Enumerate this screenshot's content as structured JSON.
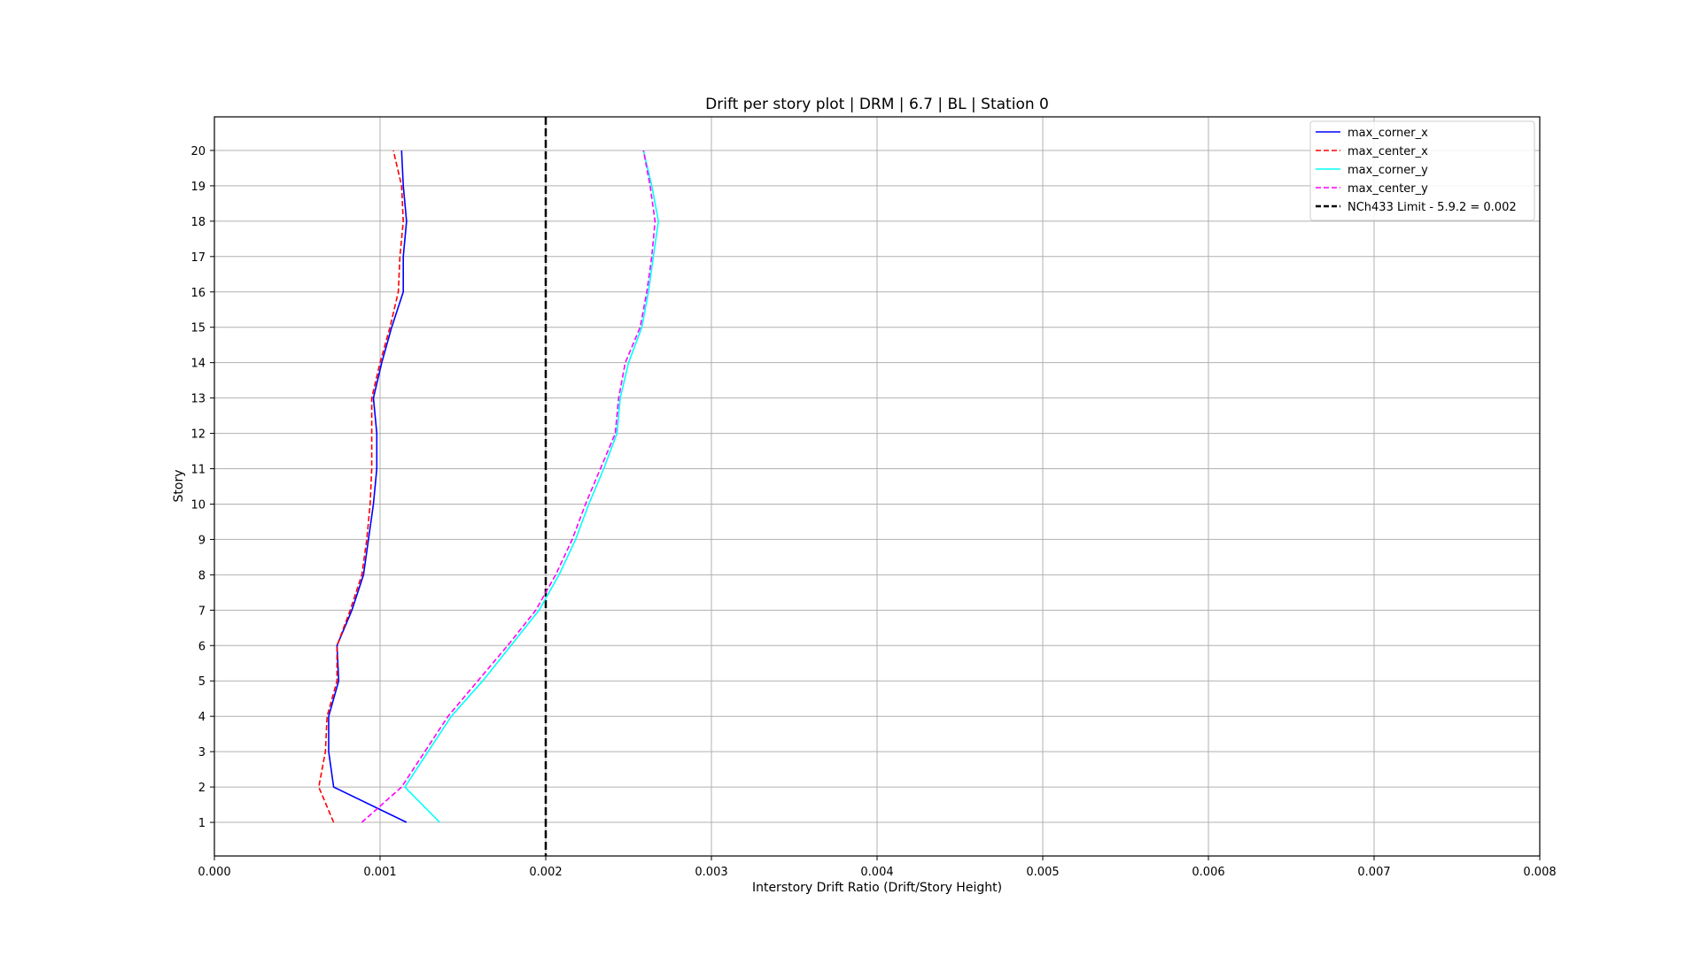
{
  "chart_data": {
    "type": "line",
    "title": "Drift per story plot | DRM |  6.7 | BL | Station 0",
    "xlabel": "Interstory Drift Ratio (Drift/Story Height)",
    "ylabel": "Story",
    "xlim": [
      0,
      0.008
    ],
    "ylim": [
      0.05,
      20.95
    ],
    "xticks": [
      "0.000",
      "0.001",
      "0.002",
      "0.003",
      "0.004",
      "0.005",
      "0.006",
      "0.007",
      "0.008"
    ],
    "yticks": [
      "1",
      "2",
      "3",
      "4",
      "5",
      "6",
      "7",
      "8",
      "9",
      "10",
      "11",
      "12",
      "13",
      "14",
      "15",
      "16",
      "17",
      "18",
      "19",
      "20"
    ],
    "grid": true,
    "legend_position": "top-right",
    "series": [
      {
        "name": "max_corner_x",
        "color": "#0000ff",
        "dash": "solid",
        "y": [
          1,
          2,
          3,
          4,
          5,
          6,
          7,
          8,
          9,
          10,
          11,
          12,
          13,
          14,
          15,
          16,
          17,
          18,
          19,
          20
        ],
        "x": [
          0.00116,
          0.00072,
          0.00069,
          0.00069,
          0.00075,
          0.00074,
          0.00083,
          0.0009,
          0.00093,
          0.00096,
          0.00098,
          0.00098,
          0.00096,
          0.00101,
          0.00107,
          0.00114,
          0.00114,
          0.00116,
          0.00114,
          0.00113
        ]
      },
      {
        "name": "max_center_x",
        "color": "#ff0000",
        "dash": "dashed",
        "y": [
          1,
          2,
          3,
          4,
          5,
          6,
          7,
          8,
          9,
          10,
          11,
          12,
          13,
          14,
          15,
          16,
          17,
          18,
          19,
          20
        ],
        "x": [
          0.00072,
          0.00063,
          0.00067,
          0.00068,
          0.00074,
          0.00074,
          0.00082,
          0.00089,
          0.00092,
          0.00094,
          0.00095,
          0.00095,
          0.00095,
          0.001,
          0.00106,
          0.00111,
          0.00112,
          0.00114,
          0.00113,
          0.00108
        ]
      },
      {
        "name": "max_corner_y",
        "color": "#00ffff",
        "dash": "solid",
        "y": [
          1,
          2,
          3,
          4,
          5,
          6,
          7,
          8,
          9,
          10,
          11,
          12,
          13,
          14,
          15,
          16,
          17,
          18,
          19,
          20
        ],
        "x": [
          0.00136,
          0.00115,
          0.00129,
          0.00143,
          0.00162,
          0.00179,
          0.00196,
          0.00208,
          0.00218,
          0.00226,
          0.00235,
          0.00243,
          0.00245,
          0.0025,
          0.00258,
          0.00262,
          0.00265,
          0.00268,
          0.00264,
          0.00259
        ]
      },
      {
        "name": "max_center_y",
        "color": "#ff00ff",
        "dash": "dashed",
        "y": [
          1,
          2,
          3,
          4,
          5,
          6,
          7,
          8,
          9,
          10,
          11,
          12,
          13,
          14,
          15,
          16,
          17,
          18,
          19,
          20
        ],
        "x": [
          0.00089,
          0.00113,
          0.00127,
          0.00141,
          0.00159,
          0.00177,
          0.00194,
          0.00206,
          0.00216,
          0.00224,
          0.00233,
          0.00242,
          0.00244,
          0.00248,
          0.00257,
          0.00261,
          0.00264,
          0.00266,
          0.00263,
          0.00259
        ]
      }
    ],
    "reference_line": {
      "name": "NCh433 Limit - 5.9.2 = 0.002",
      "x": 0.002,
      "color": "#000000",
      "dash": "dashed"
    }
  }
}
